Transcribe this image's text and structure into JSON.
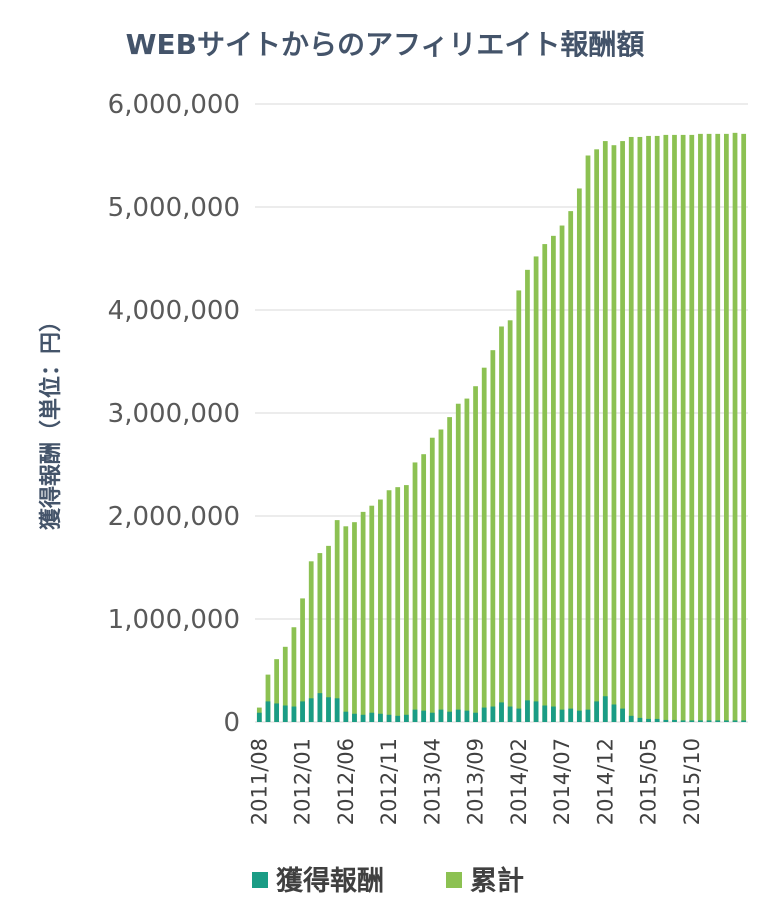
{
  "chart_data": {
    "type": "bar",
    "title": "WEBサイトからのアフィリエイト報酬額",
    "xlabel": "",
    "ylabel": "獲得報酬（単位：円）",
    "ylim": [
      0,
      6000000
    ],
    "yticks": [
      0,
      1000000,
      2000000,
      3000000,
      4000000,
      5000000,
      6000000
    ],
    "ytick_labels": [
      "0",
      "1,000,000",
      "2,000,000",
      "3,000,000",
      "4,000,000",
      "5,000,000",
      "6,000,000"
    ],
    "xtick_labels": [
      "2011/08",
      "2012/01",
      "2012/06",
      "2012/11",
      "2013/04",
      "2013/09",
      "2014/02",
      "2014/07",
      "2014/12",
      "2015/05",
      "2015/10"
    ],
    "legend_position": "bottom",
    "grid": true,
    "start_month": "2011/08",
    "series": [
      {
        "name": "獲得報酬",
        "color": "#1a9c85",
        "values": [
          90000,
          200000,
          180000,
          160000,
          150000,
          200000,
          230000,
          280000,
          240000,
          230000,
          100000,
          80000,
          70000,
          90000,
          80000,
          70000,
          60000,
          70000,
          120000,
          110000,
          90000,
          120000,
          100000,
          120000,
          110000,
          90000,
          140000,
          150000,
          190000,
          150000,
          130000,
          210000,
          200000,
          160000,
          150000,
          120000,
          130000,
          110000,
          120000,
          200000,
          250000,
          170000,
          130000,
          60000,
          40000,
          30000,
          30000,
          20000,
          20000,
          15000,
          15000,
          15000,
          15000,
          15000,
          15000,
          15000,
          15000
        ]
      },
      {
        "name": "累計",
        "color": "#8cc152",
        "values": [
          140000,
          460000,
          610000,
          730000,
          920000,
          1200000,
          1560000,
          1640000,
          1710000,
          1960000,
          1900000,
          1940000,
          2040000,
          2100000,
          2160000,
          2250000,
          2280000,
          2300000,
          2520000,
          2600000,
          2760000,
          2840000,
          2960000,
          3090000,
          3140000,
          3260000,
          3440000,
          3610000,
          3840000,
          3900000,
          4190000,
          4390000,
          4520000,
          4640000,
          4720000,
          4820000,
          4960000,
          5180000,
          5500000,
          5560000,
          5640000,
          5600000,
          5640000,
          5680000,
          5680000,
          5690000,
          5690000,
          5700000,
          5700000,
          5700000,
          5700000,
          5710000,
          5710000,
          5710000,
          5710000,
          5720000,
          5710000
        ]
      }
    ]
  }
}
